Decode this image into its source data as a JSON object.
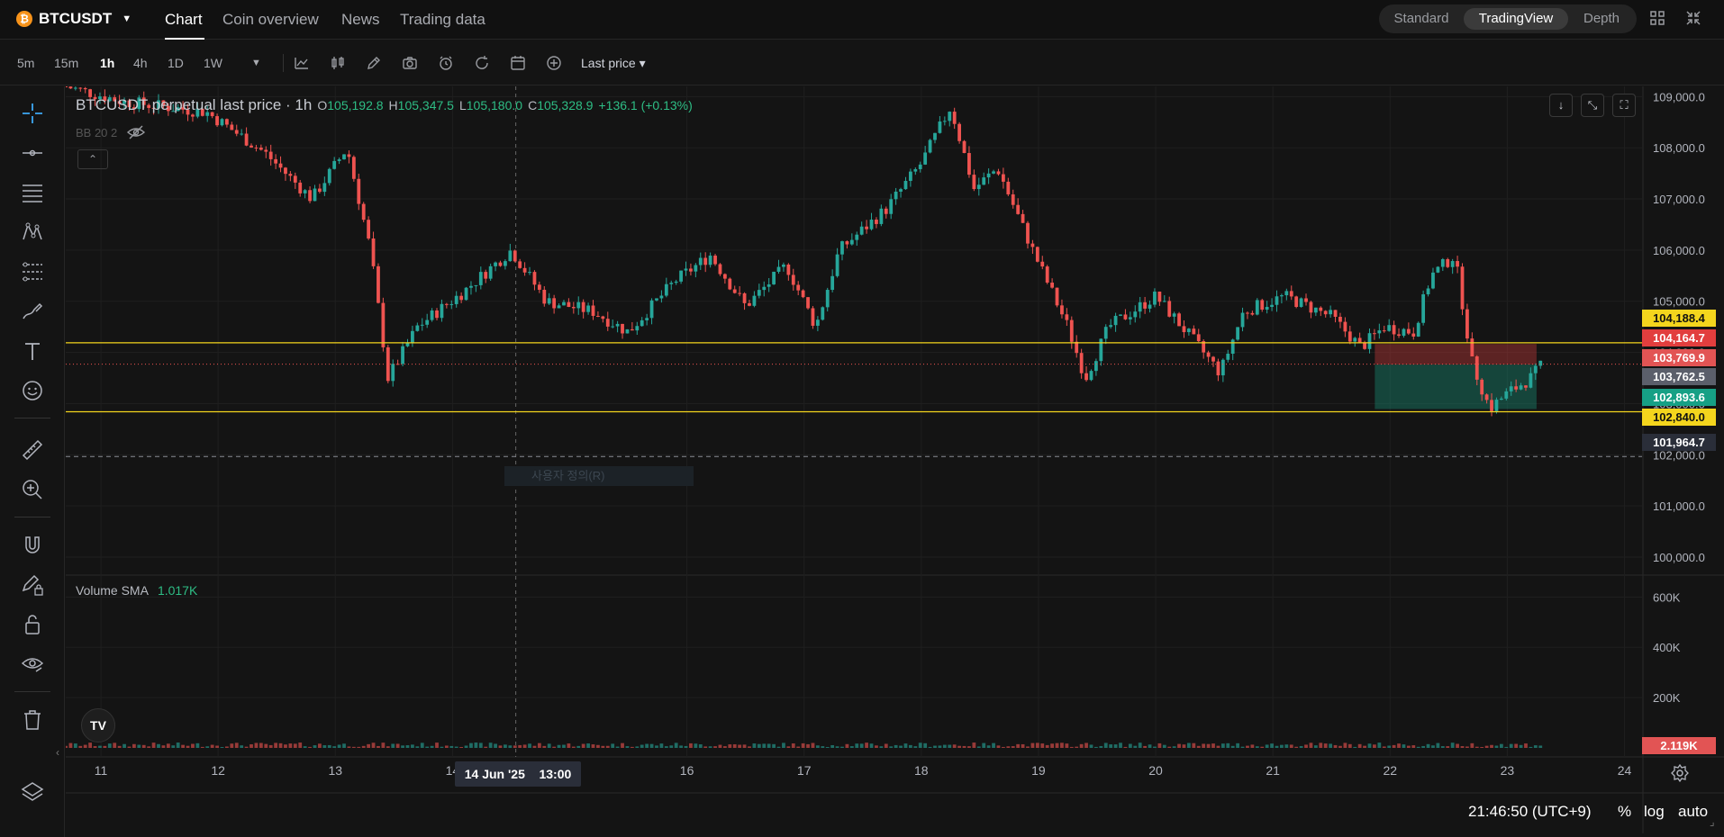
{
  "header": {
    "symbol": "BTCUSDT",
    "coin_glyph": "₿",
    "tabs": [
      {
        "label": "Chart",
        "active": true
      },
      {
        "label": "Coin overview",
        "active": false
      },
      {
        "label": "News",
        "active": false
      },
      {
        "label": "Trading data",
        "active": false
      }
    ],
    "views": [
      {
        "label": "Standard",
        "active": false
      },
      {
        "label": "TradingView",
        "active": true
      },
      {
        "label": "Depth",
        "active": false
      }
    ]
  },
  "toolbar": {
    "timeframes": [
      {
        "label": "5m",
        "active": false
      },
      {
        "label": "15m",
        "active": false
      },
      {
        "label": "1h",
        "active": true
      },
      {
        "label": "4h",
        "active": false
      },
      {
        "label": "1D",
        "active": false
      },
      {
        "label": "1W",
        "active": false
      }
    ],
    "price_type": "Last price"
  },
  "legend": {
    "title": "BTCUSDT perpetual last price · 1h",
    "open_label": "O",
    "open": "105,192.8",
    "high_label": "H",
    "high": "105,347.5",
    "low_label": "L",
    "low": "105,180.0",
    "close_label": "C",
    "close": "105,328.9",
    "change": "+136.1 (+0.13%)",
    "indicator": "BB 20 2"
  },
  "volume": {
    "label": "Volume SMA",
    "value": "1.017K",
    "current_tag": "2.119K"
  },
  "watermark": "사용자 정의(R)",
  "crosshair": {
    "date": "14 Jun '25",
    "time": "13:00"
  },
  "price_tags": [
    {
      "value": "104,188.4",
      "bg": "#f4d51d",
      "fg": "#111111"
    },
    {
      "value": "104,164.7",
      "bg": "#e23e3e",
      "fg": "#ffffff"
    },
    {
      "value": "103,769.9",
      "bg": "#e25454",
      "fg": "#ffffff"
    },
    {
      "value": "103,762.5",
      "bg": "#5b5f6b",
      "fg": "#ffffff"
    },
    {
      "value": "102,893.6",
      "bg": "#16a085",
      "fg": "#ffffff"
    },
    {
      "value": "102,840.0",
      "bg": "#f4d51d",
      "fg": "#111111"
    },
    {
      "value": "101,964.7",
      "bg": "#2a2e39",
      "fg": "#ffffff"
    }
  ],
  "footer": {
    "time": "21:46:50 (UTC+9)",
    "pct": "%",
    "log": "log",
    "auto": "auto"
  },
  "colors": {
    "up": "#26a69a",
    "down": "#ef5350",
    "level_line": "#f4d51d",
    "background": "#141414"
  },
  "chart_data": {
    "type": "candlestick",
    "title": "BTCUSDT perpetual last price · 1h",
    "x_ticks": [
      "11",
      "12",
      "13",
      "14",
      "16",
      "17",
      "18",
      "19",
      "20",
      "21",
      "22",
      "23",
      "24"
    ],
    "y_ticks": [
      "109,000.0",
      "108,000.0",
      "107,000.0",
      "106,000.0",
      "105,000.0",
      "104,000.0",
      "103,000.0",
      "102,000.0",
      "101,000.0",
      "100,000.0"
    ],
    "volume_ticks": [
      "600K",
      "400K",
      "200K"
    ],
    "ylim": [
      99700,
      109200
    ],
    "xlim_days": [
      10.7,
      24.15
    ],
    "horizontal_levels": [
      104188.4,
      102840.0,
      101964.7
    ],
    "position_box": {
      "x_start": 21.87,
      "x_end": 23.25,
      "entry": 103762.5,
      "stop": 104164.7,
      "target": 102893.6
    },
    "close_path": [
      {
        "t": 10.7,
        "p": 109200
      },
      {
        "t": 11.2,
        "p": 108900
      },
      {
        "t": 11.9,
        "p": 108700
      },
      {
        "t": 12.4,
        "p": 107900
      },
      {
        "t": 12.8,
        "p": 107000
      },
      {
        "t": 13.1,
        "p": 108000
      },
      {
        "t": 13.3,
        "p": 106000
      },
      {
        "t": 13.45,
        "p": 103500
      },
      {
        "t": 13.7,
        "p": 104500
      },
      {
        "t": 14.1,
        "p": 105200
      },
      {
        "t": 14.5,
        "p": 106000
      },
      {
        "t": 14.8,
        "p": 105000
      },
      {
        "t": 15.2,
        "p": 104800
      },
      {
        "t": 15.5,
        "p": 104400
      },
      {
        "t": 15.9,
        "p": 105400
      },
      {
        "t": 16.2,
        "p": 105900
      },
      {
        "t": 16.5,
        "p": 104900
      },
      {
        "t": 16.85,
        "p": 105700
      },
      {
        "t": 17.1,
        "p": 104500
      },
      {
        "t": 17.3,
        "p": 106000
      },
      {
        "t": 17.7,
        "p": 106800
      },
      {
        "t": 18.0,
        "p": 107700
      },
      {
        "t": 18.25,
        "p": 108800
      },
      {
        "t": 18.45,
        "p": 107200
      },
      {
        "t": 18.65,
        "p": 107600
      },
      {
        "t": 18.95,
        "p": 106000
      },
      {
        "t": 19.25,
        "p": 104500
      },
      {
        "t": 19.4,
        "p": 103500
      },
      {
        "t": 19.6,
        "p": 104500
      },
      {
        "t": 20.0,
        "p": 105100
      },
      {
        "t": 20.3,
        "p": 104300
      },
      {
        "t": 20.55,
        "p": 103600
      },
      {
        "t": 20.75,
        "p": 104800
      },
      {
        "t": 21.1,
        "p": 105100
      },
      {
        "t": 21.5,
        "p": 104700
      },
      {
        "t": 21.75,
        "p": 104100
      },
      {
        "t": 21.95,
        "p": 104500
      },
      {
        "t": 22.2,
        "p": 104400
      },
      {
        "t": 22.35,
        "p": 105500
      },
      {
        "t": 22.55,
        "p": 105900
      },
      {
        "t": 22.7,
        "p": 103800
      },
      {
        "t": 22.85,
        "p": 102900
      },
      {
        "t": 23.0,
        "p": 103200
      },
      {
        "t": 23.2,
        "p": 103500
      },
      {
        "t": 23.3,
        "p": 103769.9
      }
    ]
  }
}
